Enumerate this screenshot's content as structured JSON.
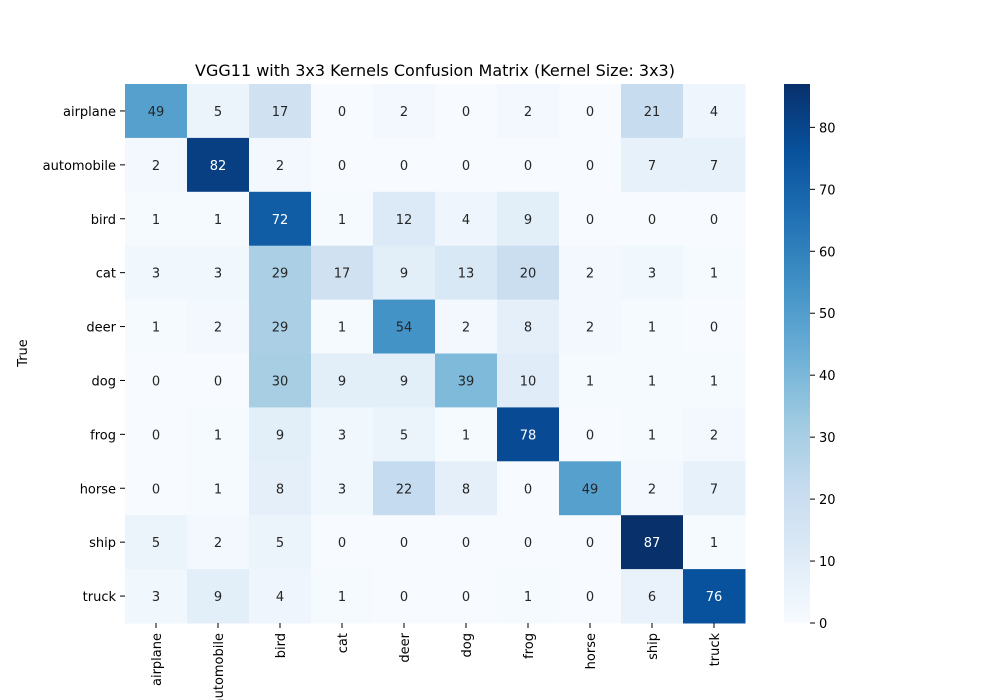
{
  "chart_data": {
    "type": "heatmap",
    "title": "VGG11 with 3x3 Kernels Confusion Matrix (Kernel Size: 3x3)",
    "xlabel": "",
    "ylabel": "True",
    "x_categories": [
      "airplane",
      "automobile",
      "bird",
      "cat",
      "deer",
      "dog",
      "frog",
      "horse",
      "ship",
      "truck"
    ],
    "y_categories": [
      "airplane",
      "automobile",
      "bird",
      "cat",
      "deer",
      "dog",
      "frog",
      "horse",
      "ship",
      "truck"
    ],
    "values": [
      [
        49,
        5,
        17,
        0,
        2,
        0,
        2,
        0,
        21,
        4
      ],
      [
        2,
        82,
        2,
        0,
        0,
        0,
        0,
        0,
        7,
        7
      ],
      [
        1,
        1,
        72,
        1,
        12,
        4,
        9,
        0,
        0,
        0
      ],
      [
        3,
        3,
        29,
        17,
        9,
        13,
        20,
        2,
        3,
        1
      ],
      [
        1,
        2,
        29,
        1,
        54,
        2,
        8,
        2,
        1,
        0
      ],
      [
        0,
        0,
        30,
        9,
        9,
        39,
        10,
        1,
        1,
        1
      ],
      [
        0,
        1,
        9,
        3,
        5,
        1,
        78,
        0,
        1,
        2
      ],
      [
        0,
        1,
        8,
        3,
        22,
        8,
        0,
        49,
        2,
        7
      ],
      [
        5,
        2,
        5,
        0,
        0,
        0,
        0,
        0,
        87,
        1
      ],
      [
        3,
        9,
        4,
        1,
        0,
        0,
        1,
        0,
        6,
        76
      ]
    ],
    "colormap": "Blues",
    "color_range": [
      0,
      87
    ],
    "colorbar_ticks": [
      0,
      10,
      20,
      30,
      40,
      50,
      60,
      70,
      80
    ],
    "colorbar_tick_labels": [
      "0",
      "10",
      "20",
      "30",
      "40",
      "50",
      "60",
      "70",
      "80"
    ],
    "annotated": true,
    "grid": false
  }
}
